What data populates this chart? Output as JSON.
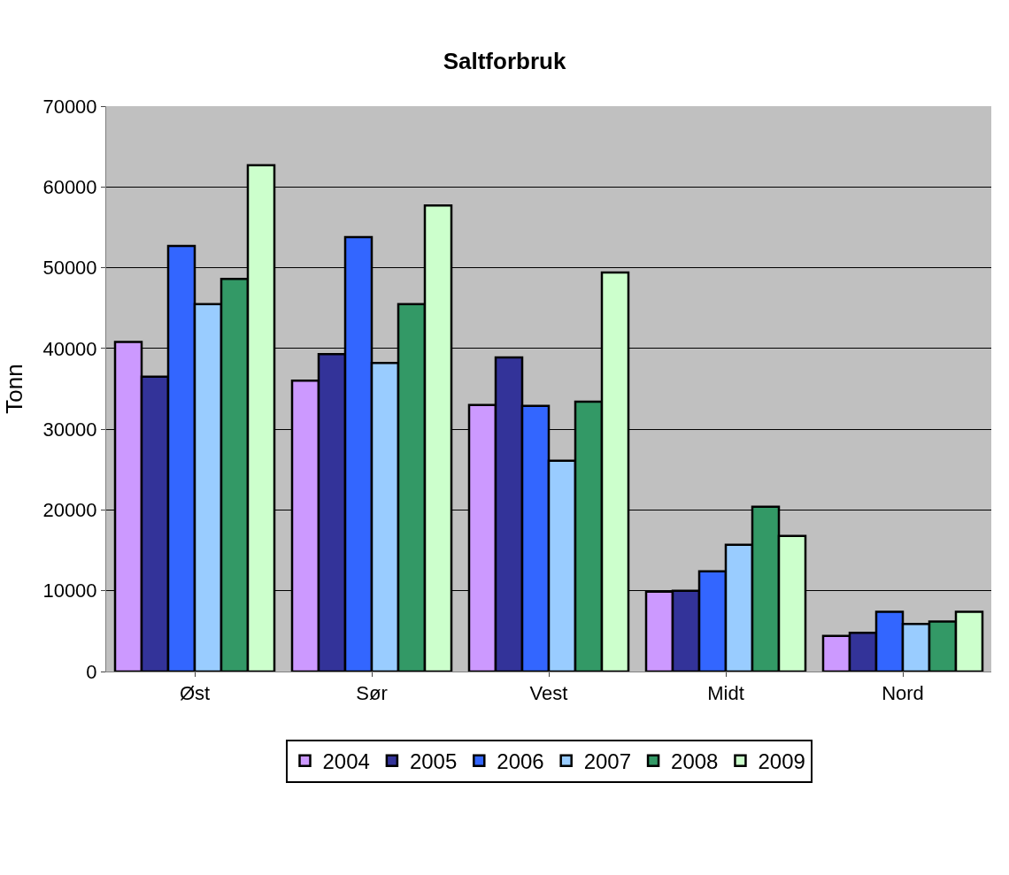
{
  "chart_data": {
    "type": "bar",
    "title": "Saltforbruk",
    "ylabel": "Tonn",
    "categories": [
      "Øst",
      "Sør",
      "Vest",
      "Midt",
      "Nord"
    ],
    "series": [
      {
        "name": "2004",
        "color": "#cc99ff",
        "values": [
          40800,
          36000,
          33000,
          9900,
          4400
        ]
      },
      {
        "name": "2005",
        "color": "#333399",
        "values": [
          36500,
          39300,
          38900,
          10000,
          4800
        ]
      },
      {
        "name": "2006",
        "color": "#3366ff",
        "values": [
          52700,
          53800,
          32900,
          12400,
          7400
        ]
      },
      {
        "name": "2007",
        "color": "#99ccff",
        "values": [
          45500,
          38200,
          26100,
          15700,
          5900
        ]
      },
      {
        "name": "2008",
        "color": "#339966",
        "values": [
          48600,
          45500,
          33400,
          20400,
          6200
        ]
      },
      {
        "name": "2009",
        "color": "#ccffcc",
        "values": [
          62700,
          57700,
          49400,
          16800,
          7400
        ]
      }
    ],
    "ylim": [
      0,
      70000
    ],
    "yticks": [
      0,
      10000,
      20000,
      30000,
      40000,
      50000,
      60000,
      70000
    ],
    "grid": "y",
    "legend": "bottom"
  }
}
